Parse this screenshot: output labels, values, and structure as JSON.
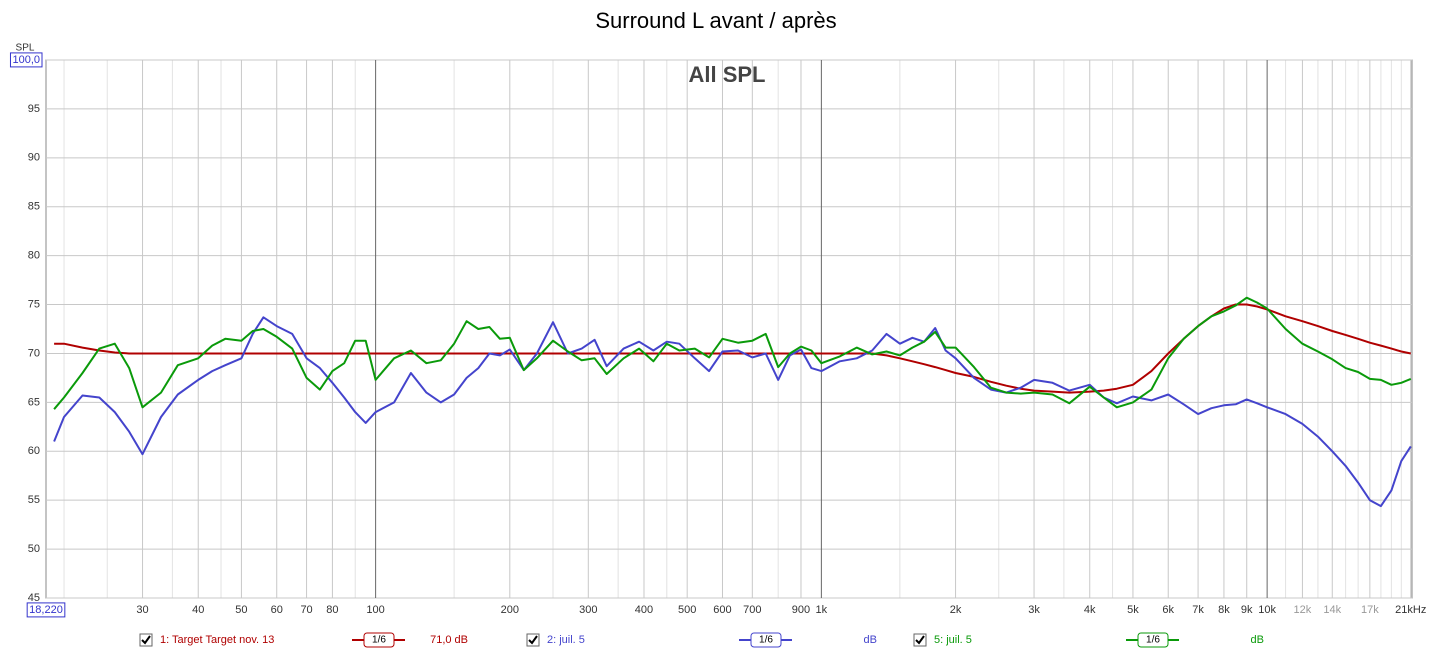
{
  "chart_data": {
    "type": "line",
    "title": "Surround L avant / après",
    "subtitle": "All SPL",
    "ylabel": "SPL",
    "log_x": true,
    "grid": true,
    "xlim": [
      18.22,
      21135
    ],
    "ylim": [
      45,
      100
    ],
    "xticks": [
      {
        "value": 18.22,
        "label": "18,220"
      },
      30,
      40,
      50,
      60,
      70,
      80,
      100,
      200,
      300,
      400,
      500,
      600,
      700,
      900,
      {
        "value": 1000,
        "label": "1k"
      },
      {
        "value": 2000,
        "label": "2k"
      },
      {
        "value": 3000,
        "label": "3k"
      },
      {
        "value": 4000,
        "label": "4k"
      },
      {
        "value": 5000,
        "label": "5k"
      },
      {
        "value": 6000,
        "label": "6k"
      },
      {
        "value": 7000,
        "label": "7k"
      },
      {
        "value": 8000,
        "label": "8k"
      },
      {
        "value": 9000,
        "label": "9k"
      },
      {
        "value": 10000,
        "label": "10k"
      },
      {
        "value": 12000,
        "label": "12k"
      },
      {
        "value": 14000,
        "label": "14k"
      },
      {
        "value": 17000,
        "label": "17k"
      },
      {
        "value": 21000,
        "label": "21kHz"
      }
    ],
    "xminor": [
      20,
      25,
      35,
      45,
      90,
      150,
      250,
      350,
      450,
      800,
      1500,
      2500,
      3500,
      4500,
      11000,
      13000,
      15000,
      16000,
      18000,
      19000,
      20000
    ],
    "yticks": [
      45,
      50,
      55,
      60,
      65,
      70,
      75,
      80,
      85,
      90,
      95,
      {
        "value": 100,
        "label": "100,0"
      }
    ],
    "x": [
      19,
      20,
      22,
      24,
      26,
      28,
      30,
      33,
      36,
      40,
      43,
      46,
      50,
      53,
      56,
      60,
      65,
      70,
      75,
      80,
      85,
      90,
      95,
      100,
      110,
      120,
      130,
      140,
      150,
      160,
      170,
      180,
      190,
      200,
      215,
      230,
      250,
      270,
      290,
      310,
      330,
      360,
      390,
      420,
      450,
      480,
      520,
      560,
      600,
      650,
      700,
      750,
      800,
      850,
      900,
      950,
      1000,
      1100,
      1200,
      1300,
      1400,
      1500,
      1600,
      1700,
      1800,
      1900,
      2000,
      2200,
      2400,
      2600,
      2800,
      3000,
      3300,
      3600,
      4000,
      4300,
      4600,
      5000,
      5500,
      6000,
      6500,
      7000,
      7500,
      8000,
      8500,
      9000,
      9500,
      10000,
      11000,
      12000,
      13000,
      14000,
      15000,
      16000,
      17000,
      18000,
      19000,
      20000,
      21000
    ],
    "series": [
      {
        "name": "1: Target Target nov. 13",
        "color": "#b00000",
        "smoothing": "1/6",
        "level": "71,0 dB",
        "values": [
          71,
          71,
          70.6,
          70.3,
          70.1,
          70,
          70,
          70,
          70,
          70,
          70,
          70,
          70,
          70,
          70,
          70,
          70,
          70,
          70,
          70,
          70,
          70,
          70,
          70,
          70,
          70,
          70,
          70,
          70,
          70,
          70,
          70,
          70,
          70,
          70,
          70,
          70,
          70,
          70,
          70,
          70,
          70,
          70,
          70,
          70,
          70,
          70,
          70,
          70,
          70,
          70,
          70,
          70,
          70,
          70,
          70,
          70,
          70,
          70,
          70,
          69.8,
          69.5,
          69.2,
          68.9,
          68.6,
          68.3,
          68,
          67.6,
          67.1,
          66.7,
          66.4,
          66.2,
          66.1,
          66,
          66.1,
          66.2,
          66.4,
          66.8,
          68.2,
          70,
          71.5,
          72.8,
          73.8,
          74.6,
          75,
          75,
          74.8,
          74.5,
          73.8,
          73.3,
          72.8,
          72.3,
          71.9,
          71.5,
          71.1,
          70.8,
          70.5,
          70.2,
          70
        ]
      },
      {
        "name": "2: juil. 5",
        "color": "#4444cc",
        "smoothing": "1/6",
        "level": "dB",
        "values": [
          61,
          63.5,
          65.7,
          65.5,
          64,
          62,
          59.7,
          63.5,
          65.8,
          67.3,
          68.2,
          68.8,
          69.5,
          72,
          73.7,
          72.8,
          72,
          69.5,
          68.5,
          67,
          65.5,
          64,
          62.9,
          64,
          65,
          68,
          66,
          65,
          65.8,
          67.5,
          68.5,
          70,
          69.8,
          70.4,
          68.3,
          70,
          73.2,
          70,
          70.5,
          71.4,
          68.7,
          70.5,
          71.2,
          70.3,
          71.2,
          71,
          69.5,
          68.2,
          70.2,
          70.3,
          69.6,
          70,
          67.3,
          69.8,
          70.4,
          68.5,
          68.2,
          69.2,
          69.5,
          70.3,
          72,
          71,
          71.6,
          71.2,
          72.6,
          70.3,
          69.5,
          67.5,
          66.3,
          66,
          66.5,
          67.3,
          67,
          66.2,
          66.8,
          65.5,
          64.9,
          65.6,
          65.2,
          65.8,
          64.8,
          63.8,
          64.4,
          64.7,
          64.8,
          65.3,
          64.9,
          64.5,
          63.8,
          62.8,
          61.5,
          60,
          58.5,
          56.8,
          55,
          54.4,
          56,
          59,
          60.5
        ]
      },
      {
        "name": "5: juil. 5",
        "color": "#0a9a0a",
        "smoothing": "1/6",
        "level": "dB",
        "values": [
          64.3,
          65.5,
          68,
          70.5,
          71,
          68.5,
          64.5,
          66,
          68.8,
          69.5,
          70.8,
          71.5,
          71.3,
          72.3,
          72.5,
          71.7,
          70.5,
          67.5,
          66.3,
          68.2,
          69,
          71.3,
          71.3,
          67.3,
          69.5,
          70.3,
          69,
          69.3,
          71,
          73.3,
          72.5,
          72.7,
          71.5,
          71.6,
          68.3,
          69.5,
          71.3,
          70.2,
          69.3,
          69.5,
          67.9,
          69.5,
          70.5,
          69.2,
          71,
          70.3,
          70.5,
          69.6,
          71.5,
          71.1,
          71.3,
          72,
          68.6,
          70,
          70.7,
          70.3,
          69,
          69.7,
          70.6,
          69.9,
          70.2,
          69.8,
          70.6,
          71.2,
          72.2,
          70.6,
          70.6,
          68.6,
          66.5,
          66,
          65.9,
          66,
          65.8,
          64.9,
          66.6,
          65.5,
          64.5,
          65,
          66.3,
          69.5,
          71.5,
          72.8,
          73.8,
          74.3,
          74.9,
          75.7,
          75.2,
          74.6,
          72.5,
          71,
          70.2,
          69.4,
          68.5,
          68.1,
          67.4,
          67.3,
          66.8,
          67,
          67.4
        ]
      }
    ]
  }
}
